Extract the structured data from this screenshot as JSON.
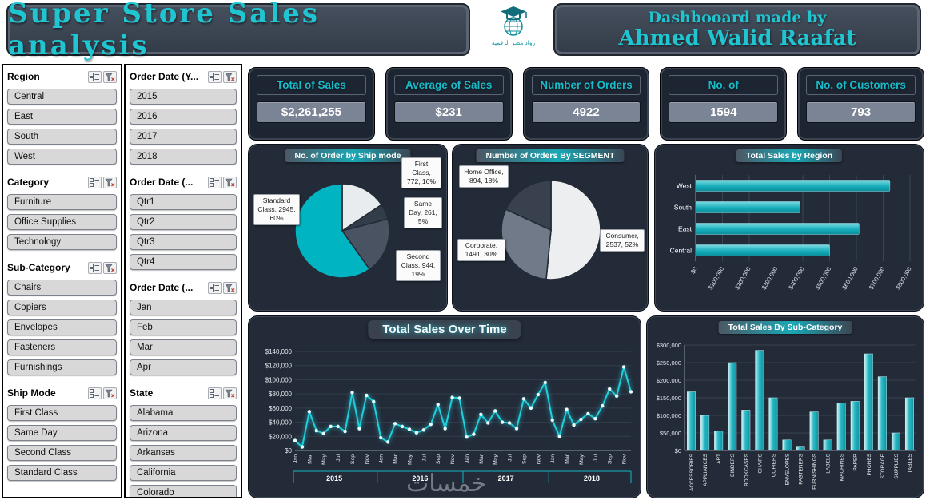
{
  "header": {
    "title": "Super Store Sales analysis",
    "credit_line1": "Dashbooard made by",
    "credit_line2": "Ahmed Walid Raafat",
    "logo_text": "رواد مصر الرقمية"
  },
  "colors": {
    "accent": "#17b5c2",
    "panel": "#232b39",
    "bar": "#17aebb",
    "slicer_button": "#d8d8d8"
  },
  "watermark": "خمسات",
  "slicers": {
    "col1": [
      {
        "title": "Region",
        "items": [
          "Central",
          "East",
          "South",
          "West"
        ]
      },
      {
        "title": "Category",
        "items": [
          "Furniture",
          "Office Supplies",
          "Technology"
        ]
      },
      {
        "title": "Sub-Category",
        "items": [
          "Chairs",
          "Copiers",
          "Envelopes",
          "Fasteners",
          "Furnishings"
        ]
      },
      {
        "title": "Ship Mode",
        "items": [
          "First Class",
          "Same Day",
          "Second Class",
          "Standard Class"
        ]
      }
    ],
    "col2": [
      {
        "title": "Order Date (Y...",
        "items": [
          "2015",
          "2016",
          "2017",
          "2018"
        ]
      },
      {
        "title": "Order Date (...",
        "items": [
          "Qtr1",
          "Qtr2",
          "Qtr3",
          "Qtr4"
        ]
      },
      {
        "title": "Order Date (...",
        "items": [
          "Jan",
          "Feb",
          "Mar",
          "Apr"
        ]
      },
      {
        "title": "State",
        "items": [
          "Alabama",
          "Arizona",
          "Arkansas",
          "California",
          "Colorado"
        ]
      }
    ]
  },
  "kpis": [
    {
      "title": "Total of Sales",
      "value": "$2,261,255"
    },
    {
      "title": "Average of Sales",
      "value": "$231"
    },
    {
      "title": "Number of Orders",
      "value": "4922"
    },
    {
      "title": "No. of",
      "value": "1594"
    },
    {
      "title": "No. of Customers",
      "value": "793"
    }
  ],
  "chart_data": [
    {
      "id": "ship_mode_pie",
      "type": "pie",
      "title": "No. of Order by Ship mode",
      "legend_position": "callouts",
      "slices": [
        {
          "label": "First Class",
          "value": 772,
          "pct": "16%",
          "color": "#e9ecef"
        },
        {
          "label": "Same Day",
          "value": 261,
          "pct": "5%",
          "color": "#333c49"
        },
        {
          "label": "Second Class",
          "value": 944,
          "pct": "19%",
          "color": "#495362"
        },
        {
          "label": "Standard Class",
          "value": 2945,
          "pct": "60%",
          "color": "#00b4c1"
        }
      ]
    },
    {
      "id": "segment_pie",
      "type": "pie",
      "title": "Number of Orders By SEGMENT",
      "legend_position": "callouts",
      "slices": [
        {
          "label": "Consumer",
          "value": 2537,
          "pct": "52%",
          "color": "#eceef0"
        },
        {
          "label": "Corporate",
          "value": 1491,
          "pct": "30%",
          "color": "#707a89"
        },
        {
          "label": "Home Office",
          "value": 894,
          "pct": "18%",
          "color": "#39414e"
        }
      ]
    },
    {
      "id": "region_bar",
      "type": "bar",
      "orientation": "horizontal",
      "title": "Total Sales by Region",
      "categories": [
        "West",
        "South",
        "East",
        "Central"
      ],
      "values": [
        725000,
        390000,
        610000,
        500000
      ],
      "xlim": [
        0,
        800000
      ],
      "tick_step": 100000,
      "grid": true
    },
    {
      "id": "sales_over_time",
      "type": "line",
      "title": "Total Sales Over Time",
      "years": [
        "2015",
        "2016",
        "2017",
        "2018"
      ],
      "months": [
        "Jan",
        "Feb",
        "Mar",
        "Apr",
        "May",
        "Jun",
        "Jul",
        "Aug",
        "Sep",
        "Oct",
        "Nov",
        "Dec"
      ],
      "month_label_every": 2,
      "values": [
        14000,
        5000,
        55000,
        28000,
        24000,
        34000,
        34000,
        27000,
        82000,
        31000,
        78000,
        69000,
        18000,
        12000,
        38000,
        34000,
        30000,
        25000,
        29000,
        37000,
        65000,
        31000,
        75000,
        74000,
        19000,
        23000,
        51000,
        39000,
        56000,
        40000,
        39000,
        31000,
        73000,
        60000,
        79000,
        96000,
        43000,
        20000,
        58000,
        36000,
        44000,
        52000,
        45000,
        63000,
        87000,
        77000,
        118000,
        83000
      ],
      "ylim": [
        0,
        140000
      ],
      "tick_step": 20000,
      "grid": true
    },
    {
      "id": "subcategory_bar",
      "type": "bar",
      "orientation": "vertical",
      "title": "Total Sales By Sub-Category",
      "categories": [
        "ACCESSORIES",
        "APPLIANCES",
        "ART",
        "BINDERS",
        "BOOKCASES",
        "CHAIRS",
        "COPIERS",
        "ENVELOPES",
        "FASTENERS",
        "FURNISHINGS",
        "LABELS",
        "MACHINES",
        "PAPER",
        "PHONES",
        "STORAGE",
        "SUPPLIES",
        "TABLES"
      ],
      "values": [
        167000,
        100000,
        55000,
        250000,
        115000,
        285000,
        150000,
        30000,
        10000,
        110000,
        30000,
        135000,
        140000,
        275000,
        210000,
        50000,
        150000
      ],
      "ylim": [
        0,
        300000
      ],
      "tick_step": 50000,
      "grid": true
    }
  ]
}
